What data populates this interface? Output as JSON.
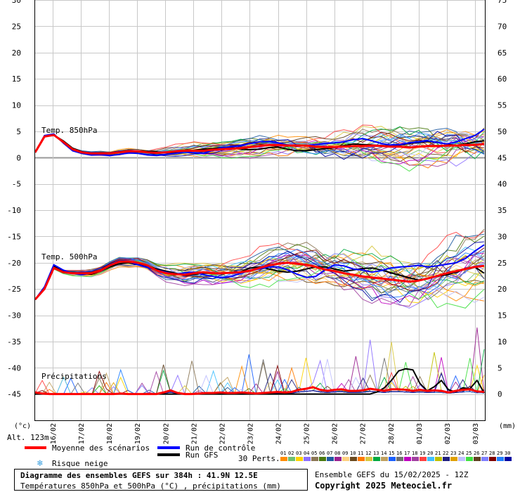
{
  "chart_data": {
    "type": "line",
    "title": "Diagramme des ensembles GEFS sur 384h : 41.9N 12.5E",
    "subtitle": "Températures 850hPa et 500hPa (°C) , précipitations (mm)",
    "left_axis_unit": "(°c)",
    "right_axis_unit": "(mm)",
    "altitude": "Alt. 123m",
    "left_ticks": [
      30,
      25,
      20,
      15,
      10,
      5,
      0,
      -5,
      -10,
      -15,
      -20,
      -25,
      -30,
      -35,
      -40,
      -45
    ],
    "right_ticks": [
      75,
      70,
      65,
      60,
      55,
      50,
      45,
      40,
      35,
      30,
      25,
      20,
      15,
      10,
      5,
      0
    ],
    "ylim": [
      -50,
      30
    ],
    "x_labels": [
      "16/02",
      "17/02",
      "18/02",
      "19/02",
      "20/02",
      "21/02",
      "22/02",
      "23/02",
      "24/02",
      "25/02",
      "26/02",
      "27/02",
      "28/02",
      "01/03",
      "02/03",
      "03/03"
    ],
    "grid": true,
    "annotations": [
      "Temp. 850hPa",
      "Temp. 500hPa",
      "Précipitations"
    ],
    "series": [
      {
        "name": "Moyenne des scénarios",
        "color": "#ff0000",
        "group": "t850",
        "values": [
          1.0,
          4.0,
          4.3,
          3.0,
          1.6,
          1.0,
          0.8,
          0.8,
          0.8,
          1.0,
          1.2,
          1.2,
          1.0,
          0.9,
          1.0,
          1.2,
          1.3,
          1.3,
          1.3,
          1.5,
          1.6,
          1.7,
          1.8,
          2.0,
          2.2,
          2.4,
          2.4,
          2.3,
          2.3,
          2.3,
          2.1,
          2.0,
          2.0,
          2.1,
          2.2,
          2.2,
          2.3,
          2.2,
          2.1,
          2.1,
          1.9,
          2.1,
          2.2,
          2.2,
          2.3,
          2.3,
          2.4,
          2.4,
          2.6
        ]
      },
      {
        "name": "Moyenne des scénarios",
        "color": "#ff0000",
        "group": "t500",
        "values": [
          -27.0,
          -25.0,
          -21.0,
          -21.8,
          -22.0,
          -22.0,
          -22.0,
          -21.5,
          -20.5,
          -19.8,
          -19.8,
          -20.0,
          -20.5,
          -21.5,
          -22.0,
          -22.2,
          -22.3,
          -22.0,
          -21.8,
          -22.0,
          -22.0,
          -21.9,
          -21.8,
          -21.5,
          -21.0,
          -20.5,
          -20.2,
          -20.0,
          -20.2,
          -20.4,
          -20.8,
          -21.3,
          -21.6,
          -22.0,
          -22.3,
          -22.6,
          -22.8,
          -23.0,
          -23.2,
          -23.4,
          -23.6,
          -23.4,
          -23.0,
          -22.5,
          -22.0,
          -21.6,
          -21.2,
          -20.8,
          -20.6
        ]
      },
      {
        "name": "Moyenne des scénarios",
        "color": "#ff0000",
        "group": "precip",
        "values": [
          0.3,
          0.1,
          0,
          0,
          0,
          0,
          0,
          0,
          0,
          0,
          0,
          0,
          0.1,
          0,
          0,
          0,
          0,
          0,
          0.3,
          0.7,
          0.2,
          0,
          0,
          0.1,
          0.2,
          0.2,
          0.3,
          0.2,
          0.2,
          0.3,
          0.2,
          0.1,
          0.2,
          0.3,
          0.4,
          0.3,
          0.4,
          0.8,
          1.0,
          1.3,
          0.8,
          0.6,
          0.8,
          0.9,
          0.6,
          0.6,
          0.7,
          1.0,
          0.8,
          0.6,
          0.9,
          0.9,
          0.8,
          0.6,
          0.8,
          0.6,
          0.7,
          0.6,
          0.3,
          0.6,
          0.8,
          0.9,
          0.5,
          0.4
        ]
      },
      {
        "name": "Run de contrôle",
        "color": "#0000ff",
        "group": "t850",
        "values": [
          1.0,
          4.2,
          4.5,
          2.8,
          1.3,
          0.8,
          0.5,
          0.6,
          0.4,
          0.6,
          0.9,
          0.8,
          0.5,
          0.4,
          0.6,
          0.8,
          1.1,
          0.9,
          0.8,
          1.4,
          1.9,
          2.1,
          2.3,
          2.7,
          3.0,
          3.1,
          2.8,
          2.4,
          2.3,
          2.3,
          2.5,
          2.7,
          2.8,
          3.0,
          3.4,
          3.6,
          3.2,
          2.7,
          2.4,
          2.5,
          2.8,
          3.0,
          3.2,
          2.9,
          2.6,
          3.0,
          3.6,
          4.2,
          5.4
        ]
      },
      {
        "name": "Run de contrôle",
        "color": "#0000ff",
        "group": "t500",
        "values": [
          -27.0,
          -24.6,
          -20.4,
          -21.4,
          -22.0,
          -22.3,
          -22.0,
          -21.6,
          -20.6,
          -19.8,
          -19.8,
          -20.4,
          -20.9,
          -21.4,
          -21.8,
          -22.2,
          -21.9,
          -21.8,
          -22.3,
          -22.6,
          -22.9,
          -22.6,
          -22.0,
          -21.5,
          -21.2,
          -20.8,
          -20.8,
          -21.4,
          -22.2,
          -22.8,
          -22.6,
          -21.4,
          -20.4,
          -20.6,
          -21.2,
          -21.4,
          -21.8,
          -21.5,
          -21.0,
          -20.8,
          -20.7,
          -20.5,
          -20.8,
          -20.6,
          -20.3,
          -20.0,
          -19.2,
          -17.8,
          -16.6
        ]
      },
      {
        "name": "Run GFS",
        "color": "#000000",
        "group": "t850",
        "values": [
          1.0,
          4.0,
          4.3,
          3.2,
          1.8,
          1.1,
          0.7,
          0.9,
          0.8,
          1.0,
          1.3,
          1.2,
          1.2,
          1.1,
          0.9,
          1.0,
          1.1,
          1.4,
          1.6,
          1.7,
          1.9,
          1.9,
          1.6,
          1.5,
          1.6,
          1.9,
          2.0,
          1.6,
          1.3,
          1.3,
          1.5,
          1.7,
          1.9,
          2.3,
          2.6,
          2.5,
          2.4,
          2.3,
          2.2,
          2.4,
          2.7,
          2.9,
          3.1,
          2.9,
          2.6,
          2.3,
          2.6,
          3.0,
          3.2
        ]
      },
      {
        "name": "Run GFS",
        "color": "#000000",
        "group": "t500",
        "values": [
          -27.0,
          -25.0,
          -20.6,
          -21.6,
          -22.0,
          -22.0,
          -22.2,
          -21.6,
          -20.8,
          -20.2,
          -20.0,
          -20.4,
          -20.6,
          -21.2,
          -21.6,
          -22.0,
          -22.4,
          -22.2,
          -22.0,
          -22.0,
          -22.0,
          -21.9,
          -21.7,
          -21.0,
          -20.8,
          -21.2,
          -21.6,
          -21.8,
          -21.6,
          -21.2,
          -20.8,
          -20.8,
          -21.2,
          -21.6,
          -21.4,
          -21.1,
          -21.0,
          -21.4,
          -21.9,
          -22.4,
          -22.9,
          -23.3,
          -23.0,
          -22.6,
          -22.3,
          -21.8,
          -21.2,
          -20.8,
          -22.0
        ]
      },
      {
        "name": "Run GFS",
        "color": "#000000",
        "group": "precip",
        "values": [
          0,
          0,
          0,
          0,
          0,
          0,
          0,
          0,
          0,
          0,
          0,
          0,
          0,
          0,
          0,
          0,
          0,
          0,
          0,
          0,
          0,
          0,
          0,
          0,
          0,
          0,
          0,
          0,
          0,
          0,
          0,
          0,
          0,
          0,
          0,
          0,
          0,
          0,
          0,
          0,
          0,
          0,
          0,
          0,
          0,
          0,
          0,
          0,
          0.4,
          1.2,
          2.6,
          4.4,
          4.8,
          4.6,
          2.0,
          0.6,
          1.4,
          2.6,
          0.8,
          0.4,
          1.2,
          1.0,
          2.6,
          0.2
        ]
      }
    ],
    "perturbation_count": 30
  },
  "legend": {
    "mean_label": "Moyenne des scénarios",
    "control_label": "Run de contrôle",
    "gfs_label": "Run GFS",
    "snow_label": "Risque neige",
    "perts_label": "30 Perts.",
    "pert_numbers": [
      "01",
      "02",
      "03",
      "04",
      "05",
      "06",
      "07",
      "08",
      "09",
      "10",
      "11",
      "12",
      "13",
      "14",
      "15",
      "16",
      "17",
      "18",
      "19",
      "20",
      "21",
      "22",
      "23",
      "24",
      "25",
      "26",
      "27",
      "28",
      "29",
      "30"
    ],
    "pert_colors": [
      "#ff8c00",
      "#6fc06f",
      "#ffd400",
      "#8c6fff",
      "#8b7755",
      "#4a7a10",
      "#1e5aa0",
      "#9a2090",
      "#ffd080",
      "#6b4a1e",
      "#ff7a00",
      "#d8c840",
      "#00a840",
      "#c0a060",
      "#1a60ff",
      "#707070",
      "#c000c0",
      "#a040a0",
      "#ff4040",
      "#40c0ff",
      "#c0c000",
      "#202080",
      "#e0a000",
      "#c0c0ff",
      "#40e040",
      "#604020",
      "#8080ff",
      "#800000",
      "#2080ff",
      "#0000a0"
    ]
  },
  "footer": {
    "title": "Diagramme des ensembles GEFS sur 384h : 41.9N 12.5E",
    "subtitle": "Températures 850hPa et 500hPa (°C) , précipitations (mm)",
    "ensemble_info": "Ensemble GEFS du 15/02/2025 - 12Z",
    "copyright": "Copyright 2025 Meteociel.fr"
  }
}
